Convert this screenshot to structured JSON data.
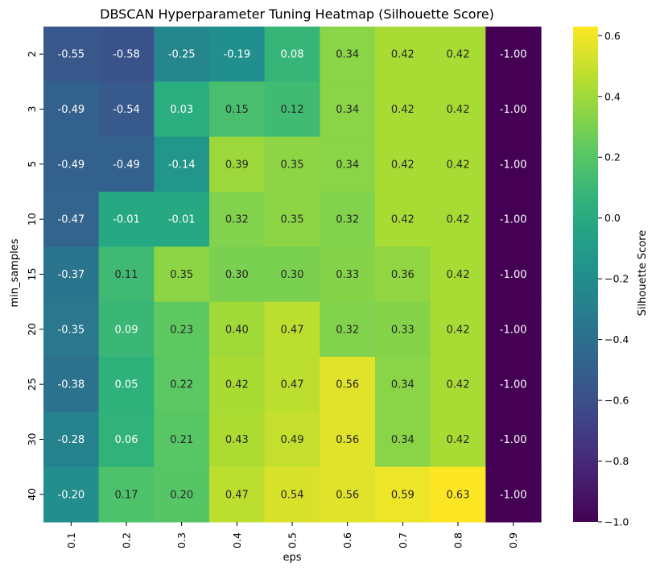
{
  "chart_data": {
    "type": "heatmap",
    "title": "DBSCAN Hyperparameter Tuning Heatmap (Silhouette Score)",
    "xlabel": "eps",
    "ylabel": "min_samples",
    "x_categories": [
      "0.1",
      "0.2",
      "0.3",
      "0.4",
      "0.5",
      "0.6",
      "0.7",
      "0.8",
      "0.9"
    ],
    "y_categories": [
      "2",
      "3",
      "5",
      "10",
      "15",
      "20",
      "25",
      "30",
      "40"
    ],
    "values": [
      [
        -0.55,
        -0.58,
        -0.25,
        -0.19,
        0.08,
        0.34,
        0.42,
        0.42,
        -1.0
      ],
      [
        -0.49,
        -0.54,
        0.03,
        0.15,
        0.12,
        0.34,
        0.42,
        0.42,
        -1.0
      ],
      [
        -0.49,
        -0.49,
        -0.14,
        0.39,
        0.35,
        0.34,
        0.42,
        0.42,
        -1.0
      ],
      [
        -0.47,
        -0.01,
        -0.01,
        0.32,
        0.35,
        0.32,
        0.42,
        0.42,
        -1.0
      ],
      [
        -0.37,
        0.11,
        0.35,
        0.3,
        0.3,
        0.33,
        0.36,
        0.42,
        -1.0
      ],
      [
        -0.35,
        0.09,
        0.23,
        0.4,
        0.47,
        0.32,
        0.33,
        0.42,
        -1.0
      ],
      [
        -0.38,
        0.05,
        0.22,
        0.42,
        0.47,
        0.56,
        0.34,
        0.42,
        -1.0
      ],
      [
        -0.28,
        0.06,
        0.21,
        0.43,
        0.49,
        0.56,
        0.34,
        0.42,
        -1.0
      ],
      [
        -0.2,
        0.17,
        0.2,
        0.47,
        0.54,
        0.56,
        0.59,
        0.63,
        -1.0
      ]
    ],
    "value_format": "2 decimals",
    "colormap": "viridis",
    "vmin": -1.0,
    "vmax": 0.63,
    "colorbar": {
      "label": "Silhouette Score",
      "ticks": [
        {
          "value": 0.6,
          "label": "0.6"
        },
        {
          "value": 0.4,
          "label": "0.4"
        },
        {
          "value": 0.2,
          "label": "0.2"
        },
        {
          "value": 0.0,
          "label": "0.0"
        },
        {
          "value": -0.2,
          "label": "−0.2"
        },
        {
          "value": -0.4,
          "label": "−0.4"
        },
        {
          "value": -0.6,
          "label": "−0.6"
        },
        {
          "value": -0.8,
          "label": "−0.8"
        },
        {
          "value": -1.0,
          "label": "−1.0"
        }
      ]
    },
    "grid": false,
    "legend": "colorbar-right"
  }
}
